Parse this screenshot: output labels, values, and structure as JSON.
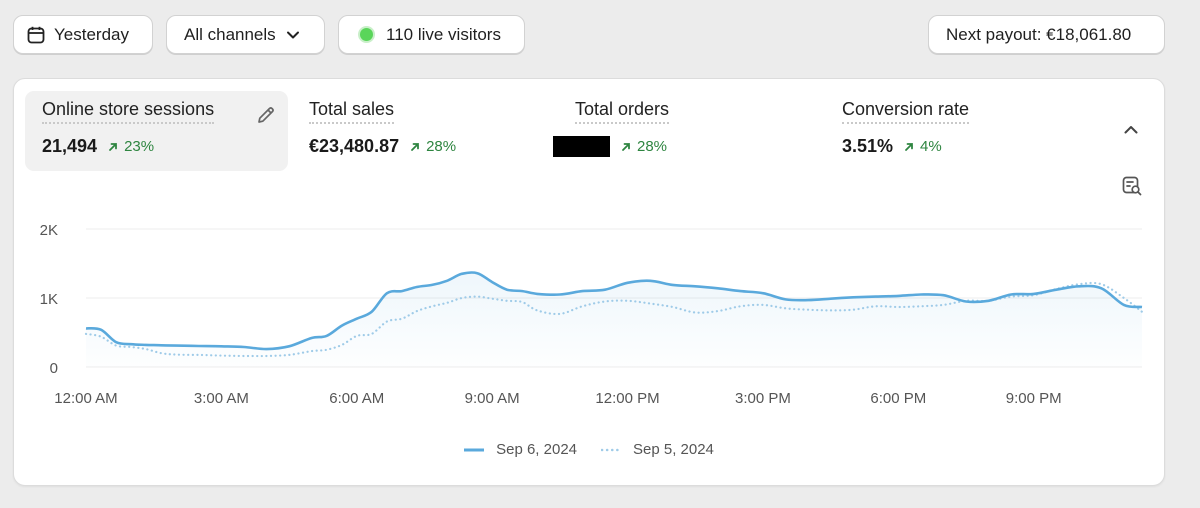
{
  "topbar": {
    "date_label": "Yesterday",
    "channels_label": "All channels",
    "live_label": "110 live visitors",
    "payout_label": "Next payout: €18,061.80"
  },
  "metrics": [
    {
      "title": "Online store sessions",
      "value": "21,494",
      "change": "23%"
    },
    {
      "title": "Total sales",
      "value": "€23,480.87",
      "change": "28%"
    },
    {
      "title": "Total orders",
      "value": "",
      "change": "28%"
    },
    {
      "title": "Conversion rate",
      "value": "3.51%",
      "change": "4%"
    }
  ],
  "colors": {
    "primary_line": "#5aa9dc",
    "comparison_line": "#9fcbe8",
    "positive": "#2e8540",
    "live_dot": "#5ad55a"
  },
  "chart_data": {
    "type": "line",
    "y_ticks": [
      "2K",
      "1K",
      "0"
    ],
    "x_ticks": [
      "12:00 AM",
      "3:00 AM",
      "6:00 AM",
      "9:00 AM",
      "12:00 PM",
      "3:00 PM",
      "6:00 PM",
      "9:00 PM"
    ],
    "ylim": [
      0,
      2000
    ],
    "x_range_hours": [
      0,
      23.4
    ],
    "series": [
      {
        "name": "Sep 6, 2024",
        "style": "solid",
        "x": [
          0,
          0.33,
          0.67,
          1,
          1.33,
          1.67,
          2,
          2.5,
          3,
          3.5,
          4,
          4.5,
          5,
          5.33,
          5.67,
          6,
          6.33,
          6.67,
          7,
          7.33,
          7.67,
          8,
          8.33,
          8.67,
          9,
          9.33,
          9.67,
          10,
          10.5,
          11,
          11.5,
          12,
          12.5,
          13,
          13.5,
          14,
          14.5,
          15,
          15.5,
          16,
          16.5,
          17,
          17.5,
          18,
          18.5,
          19,
          19.5,
          20,
          20.5,
          21,
          21.5,
          22,
          22.5,
          23,
          23.4
        ],
        "values": [
          560,
          540,
          360,
          330,
          320,
          315,
          310,
          305,
          300,
          290,
          260,
          300,
          420,
          450,
          600,
          700,
          800,
          1070,
          1100,
          1160,
          1190,
          1250,
          1350,
          1360,
          1230,
          1120,
          1100,
          1060,
          1050,
          1100,
          1120,
          1220,
          1250,
          1190,
          1170,
          1140,
          1100,
          1070,
          980,
          970,
          990,
          1010,
          1020,
          1030,
          1050,
          1040,
          950,
          960,
          1050,
          1060,
          1120,
          1170,
          1140,
          900,
          870
        ]
      },
      {
        "name": "Sep 5, 2024",
        "style": "dotted",
        "x": [
          0,
          0.33,
          0.67,
          1,
          1.33,
          1.67,
          2,
          2.5,
          3,
          3.5,
          4,
          4.5,
          5,
          5.33,
          5.67,
          6,
          6.33,
          6.67,
          7,
          7.33,
          7.67,
          8,
          8.33,
          8.67,
          9,
          9.33,
          9.67,
          10,
          10.5,
          11,
          11.5,
          12,
          12.5,
          13,
          13.5,
          14,
          14.5,
          15,
          15.5,
          16,
          16.5,
          17,
          17.5,
          18,
          18.5,
          19,
          19.5,
          20,
          20.5,
          21,
          21.5,
          22,
          22.5,
          23,
          23.4
        ],
        "values": [
          480,
          440,
          310,
          290,
          260,
          200,
          180,
          175,
          165,
          160,
          160,
          175,
          230,
          250,
          320,
          450,
          480,
          660,
          700,
          810,
          880,
          930,
          1000,
          1020,
          990,
          960,
          940,
          820,
          770,
          880,
          950,
          960,
          920,
          870,
          790,
          810,
          880,
          900,
          850,
          830,
          820,
          830,
          880,
          870,
          880,
          900,
          960,
          960,
          1020,
          1040,
          1130,
          1200,
          1200,
          1000,
          800
        ]
      }
    ]
  }
}
